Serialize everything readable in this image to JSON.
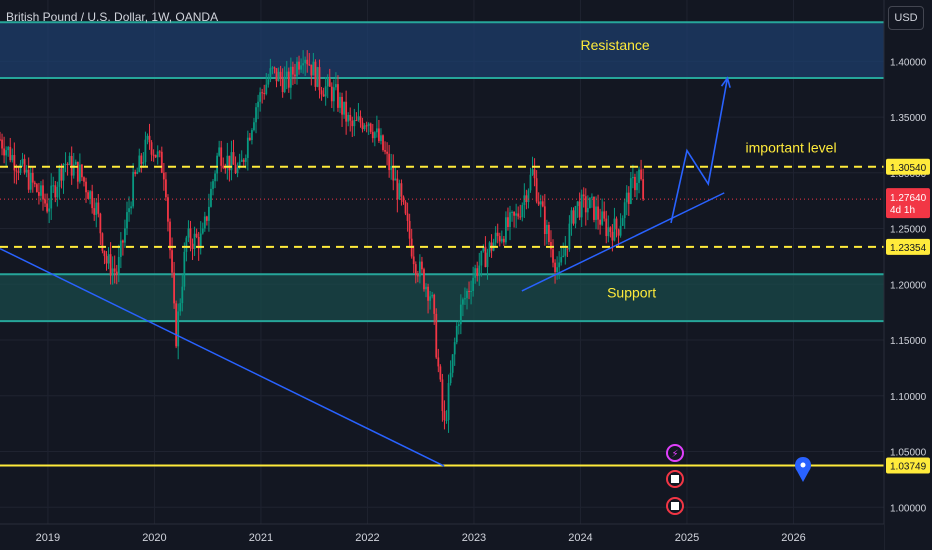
{
  "header": {
    "title": "British Pound / U.S. Dollar, 1W, OANDA",
    "currency": "USD"
  },
  "colors": {
    "background": "#131722",
    "up_candle": "#089981",
    "down_candle": "#f23645",
    "zone_border": "#26a69a",
    "resistance_fill": "#1e3d6b",
    "support_fill": "#1a4a4a",
    "dashed_level": "#ffeb3b",
    "trendline": "#2962ff",
    "current_price": "#f23645"
  },
  "chart_data": {
    "type": "candlestick",
    "symbol": "British Pound / U.S. Dollar",
    "interval": "1W",
    "source": "OANDA",
    "ylim": [
      0.985,
      1.455
    ],
    "xlim": [
      2018.55,
      2026.85
    ],
    "y_ticks": [
      "1.40000",
      "1.35000",
      "1.30000",
      "1.25000",
      "1.20000",
      "1.15000",
      "1.10000",
      "1.05000",
      "1.00000"
    ],
    "x_ticks": [
      "2019",
      "2020",
      "2021",
      "2022",
      "2023",
      "2024",
      "2025",
      "2026"
    ],
    "price_path": [
      [
        2018.55,
        1.33
      ],
      [
        2018.7,
        1.31
      ],
      [
        2018.85,
        1.29
      ],
      [
        2019.0,
        1.27
      ],
      [
        2019.15,
        1.31
      ],
      [
        2019.3,
        1.3
      ],
      [
        2019.45,
        1.27
      ],
      [
        2019.55,
        1.22
      ],
      [
        2019.65,
        1.21
      ],
      [
        2019.8,
        1.29
      ],
      [
        2019.95,
        1.33
      ],
      [
        2020.1,
        1.3
      ],
      [
        2020.2,
        1.15
      ],
      [
        2020.3,
        1.24
      ],
      [
        2020.45,
        1.24
      ],
      [
        2020.6,
        1.32
      ],
      [
        2020.8,
        1.3
      ],
      [
        2020.95,
        1.36
      ],
      [
        2021.1,
        1.39
      ],
      [
        2021.25,
        1.38
      ],
      [
        2021.4,
        1.41
      ],
      [
        2021.55,
        1.38
      ],
      [
        2021.7,
        1.37
      ],
      [
        2021.85,
        1.34
      ],
      [
        2022.0,
        1.35
      ],
      [
        2022.15,
        1.32
      ],
      [
        2022.3,
        1.28
      ],
      [
        2022.45,
        1.22
      ],
      [
        2022.6,
        1.19
      ],
      [
        2022.72,
        1.07
      ],
      [
        2022.85,
        1.17
      ],
      [
        2023.0,
        1.21
      ],
      [
        2023.2,
        1.24
      ],
      [
        2023.4,
        1.26
      ],
      [
        2023.55,
        1.3
      ],
      [
        2023.7,
        1.24
      ],
      [
        2023.8,
        1.21
      ],
      [
        2023.95,
        1.27
      ],
      [
        2024.1,
        1.27
      ],
      [
        2024.25,
        1.25
      ],
      [
        2024.35,
        1.25
      ],
      [
        2024.45,
        1.28
      ],
      [
        2024.55,
        1.3
      ],
      [
        2024.6,
        1.276
      ]
    ],
    "zones": [
      {
        "label": "Resistance",
        "top": 1.435,
        "bottom": 1.385
      },
      {
        "label": "Support",
        "top": 1.209,
        "bottom": 1.167
      }
    ],
    "levels": [
      {
        "price": 1.3054,
        "label": "1.30540",
        "style": "dashed"
      },
      {
        "price": 1.23354,
        "label": "1.23354",
        "style": "dashed"
      },
      {
        "price": 1.03749,
        "label": "1.03749",
        "style": "solid"
      }
    ],
    "current_price": {
      "value": 1.2764,
      "label": "1.27640",
      "countdown": "4d 1h"
    },
    "annotations": [
      {
        "text": "Resistance",
        "x": 2024.0,
        "y": 1.41
      },
      {
        "text": "Support",
        "x": 2024.25,
        "y": 1.188
      },
      {
        "text": "important level",
        "x": 2025.55,
        "y": 1.318
      }
    ],
    "trendlines": [
      {
        "from": [
          2018.55,
          1.232
        ],
        "to": [
          2022.72,
          1.037
        ]
      },
      {
        "from": [
          2023.45,
          1.194
        ],
        "to": [
          2025.35,
          1.282
        ]
      }
    ],
    "projection_path": [
      [
        2024.85,
        1.255
      ],
      [
        2025.0,
        1.32
      ],
      [
        2025.2,
        1.29
      ],
      [
        2025.38,
        1.385
      ]
    ]
  },
  "markers": [
    {
      "icon": "lightning-icon",
      "color": "#e040fb"
    },
    {
      "icon": "uk-flag-icon",
      "color": "#f23645"
    },
    {
      "icon": "us-flag-icon",
      "color": "#f23645"
    },
    {
      "icon": "map-pin-icon",
      "color": "#2962ff"
    }
  ]
}
